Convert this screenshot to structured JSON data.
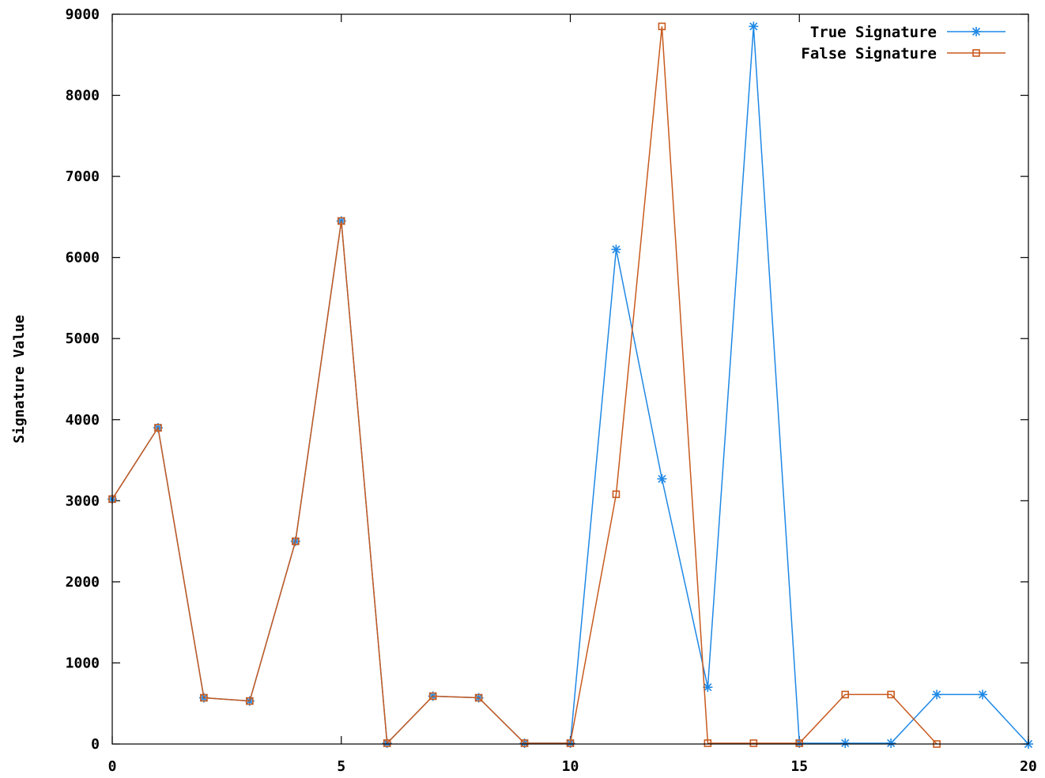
{
  "chart_data": {
    "type": "line",
    "title": "",
    "xlabel": "",
    "ylabel": "Signature Value",
    "xlim": [
      0,
      20
    ],
    "ylim": [
      0,
      9000
    ],
    "x_ticks": [
      0,
      5,
      10,
      15,
      20
    ],
    "x_tick_labels": [
      "0",
      "5",
      "10",
      "15",
      "20"
    ],
    "y_ticks": [
      0,
      1000,
      2000,
      3000,
      4000,
      5000,
      6000,
      7000,
      8000,
      9000
    ],
    "y_tick_labels": [
      "0",
      "1000",
      "2000",
      "3000",
      "4000",
      "5000",
      "6000",
      "7000",
      "8000",
      "9000"
    ],
    "grid": false,
    "legend_position": "top-right",
    "series": [
      {
        "name": "True Signature",
        "color": "#1e88e5",
        "marker": "asterisk",
        "x": [
          0,
          1,
          2,
          3,
          4,
          5,
          6,
          7,
          8,
          9,
          10,
          11,
          12,
          13,
          14,
          15,
          16,
          17,
          18,
          19,
          20
        ],
        "y": [
          3020,
          3900,
          570,
          530,
          2500,
          6450,
          10,
          590,
          570,
          10,
          10,
          6100,
          3270,
          700,
          8850,
          10,
          10,
          10,
          610,
          610,
          0
        ]
      },
      {
        "name": "False Signature",
        "color": "#c85a1e",
        "marker": "open-square",
        "x": [
          0,
          1,
          2,
          3,
          4,
          5,
          6,
          7,
          8,
          9,
          10,
          11,
          12,
          13,
          14,
          15,
          16,
          17,
          18
        ],
        "y": [
          3020,
          3900,
          570,
          530,
          2500,
          6450,
          10,
          590,
          570,
          10,
          10,
          3080,
          8850,
          10,
          10,
          10,
          610,
          610,
          0
        ]
      }
    ]
  }
}
